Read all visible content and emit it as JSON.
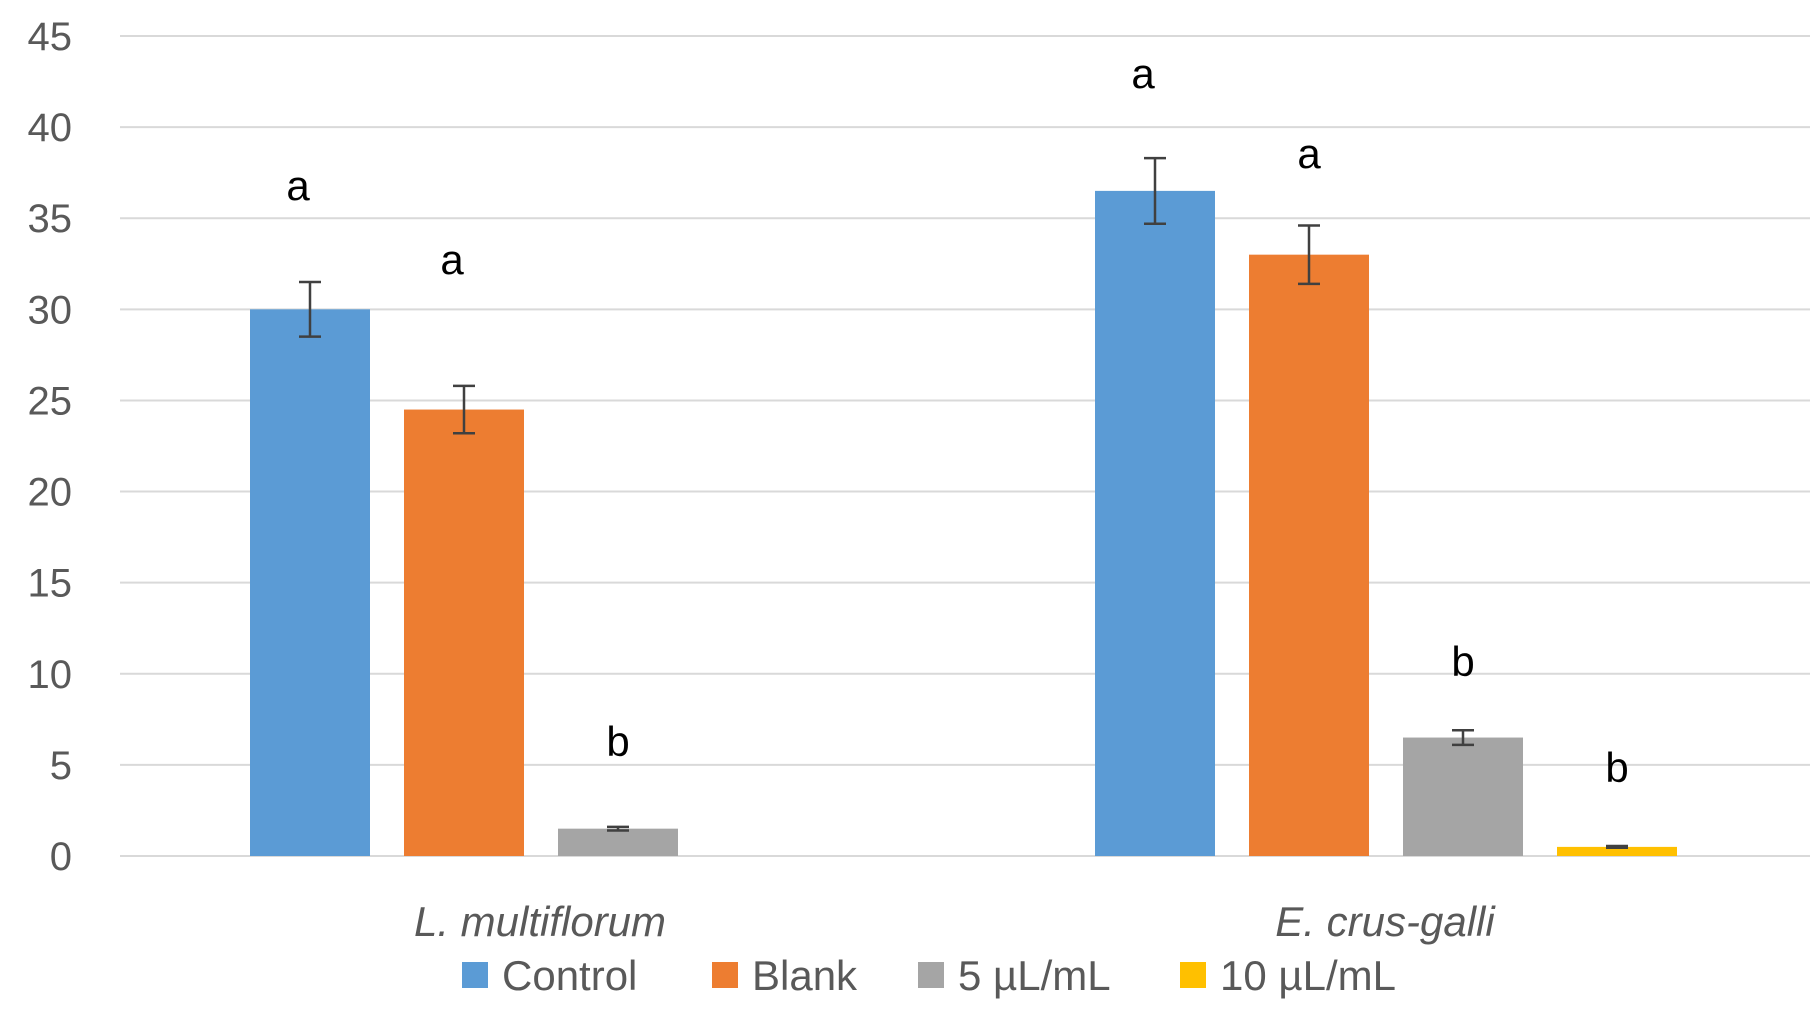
{
  "chart_data": {
    "type": "bar",
    "categories": [
      "L. multiflorum",
      "E. crus-galli"
    ],
    "series": [
      {
        "name": "Control",
        "color": "#5b9bd5",
        "values": [
          30.0,
          36.5
        ],
        "errors": [
          1.5,
          1.8
        ],
        "letters": [
          "a",
          "a"
        ]
      },
      {
        "name": "Blank",
        "color": "#ed7d31",
        "values": [
          24.5,
          33.0
        ],
        "errors": [
          1.3,
          1.6
        ],
        "letters": [
          "a",
          "a"
        ]
      },
      {
        "name": "5 µL/mL",
        "color": "#a5a5a5",
        "values": [
          1.5,
          6.5
        ],
        "errors": [
          0.1,
          0.4
        ],
        "letters": [
          "b",
          "b"
        ]
      },
      {
        "name": "10 µL/mL",
        "color": "#ffc000",
        "values": [
          0,
          0.5
        ],
        "errors": [
          0,
          0.05
        ],
        "letters": [
          "",
          "b"
        ]
      }
    ],
    "ylim": [
      0,
      45
    ],
    "yticks": [
      0,
      5,
      10,
      15,
      20,
      25,
      30,
      35,
      40,
      45
    ],
    "title": "",
    "xlabel": "",
    "ylabel": "",
    "grid": true,
    "legend_position": "bottom"
  }
}
